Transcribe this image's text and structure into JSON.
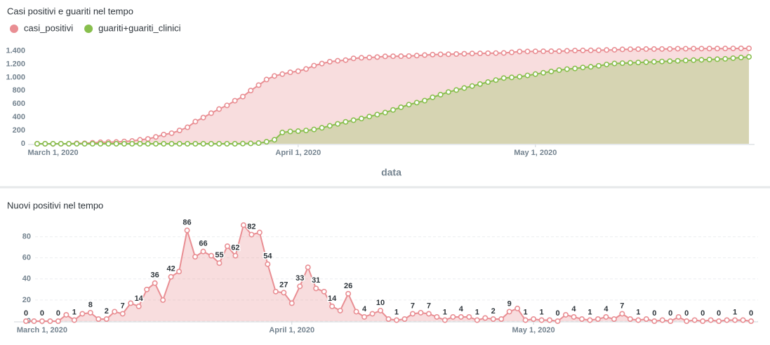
{
  "chart_data": [
    {
      "type": "area",
      "title": "Casi positivi e guariti nel tempo",
      "x_label": "data",
      "x": [
        "2020-02-28",
        "2020-02-29",
        "2020-03-01",
        "2020-03-02",
        "2020-03-03",
        "2020-03-04",
        "2020-03-05",
        "2020-03-06",
        "2020-03-07",
        "2020-03-08",
        "2020-03-09",
        "2020-03-10",
        "2020-03-11",
        "2020-03-12",
        "2020-03-13",
        "2020-03-14",
        "2020-03-15",
        "2020-03-16",
        "2020-03-17",
        "2020-03-18",
        "2020-03-19",
        "2020-03-20",
        "2020-03-21",
        "2020-03-22",
        "2020-03-23",
        "2020-03-24",
        "2020-03-25",
        "2020-03-26",
        "2020-03-27",
        "2020-03-28",
        "2020-03-29",
        "2020-03-30",
        "2020-03-31",
        "2020-04-01",
        "2020-04-02",
        "2020-04-03",
        "2020-04-04",
        "2020-04-05",
        "2020-04-06",
        "2020-04-07",
        "2020-04-08",
        "2020-04-09",
        "2020-04-10",
        "2020-04-11",
        "2020-04-12",
        "2020-04-13",
        "2020-04-14",
        "2020-04-15",
        "2020-04-16",
        "2020-04-17",
        "2020-04-18",
        "2020-04-19",
        "2020-04-20",
        "2020-04-21",
        "2020-04-22",
        "2020-04-23",
        "2020-04-24",
        "2020-04-25",
        "2020-04-26",
        "2020-04-27",
        "2020-04-28",
        "2020-04-29",
        "2020-04-30",
        "2020-05-01",
        "2020-05-02",
        "2020-05-03",
        "2020-05-04",
        "2020-05-05",
        "2020-05-06",
        "2020-05-07",
        "2020-05-08",
        "2020-05-09",
        "2020-05-10",
        "2020-05-11",
        "2020-05-12",
        "2020-05-13",
        "2020-05-14",
        "2020-05-15",
        "2020-05-16",
        "2020-05-17",
        "2020-05-18",
        "2020-05-19",
        "2020-05-20",
        "2020-05-21",
        "2020-05-22",
        "2020-05-23",
        "2020-05-24",
        "2020-05-25",
        "2020-05-26",
        "2020-05-27",
        "2020-05-28"
      ],
      "xlim": [
        "2020-02-28",
        "2020-05-28"
      ],
      "xticks": [
        {
          "value": "2020-03-01",
          "label": "March 1, 2020"
        },
        {
          "value": "2020-04-01",
          "label": "April 1, 2020"
        },
        {
          "value": "2020-05-01",
          "label": "May 1, 2020"
        }
      ],
      "ylim": [
        0,
        1480
      ],
      "yticks": [
        0,
        200,
        400,
        600,
        800,
        {
          "value": 1000,
          "label": "1.000"
        },
        {
          "value": 1200,
          "label": "1.200"
        },
        {
          "value": 1400,
          "label": "1.400"
        }
      ],
      "grid": false,
      "legend": "top-left",
      "series": [
        {
          "name": "casi_positivi",
          "color": "#e98e93",
          "values": [
            0,
            0,
            0,
            0,
            0,
            6,
            7,
            14,
            22,
            24,
            26,
            35,
            42,
            59,
            73,
            103,
            139,
            159,
            201,
            248,
            334,
            395,
            461,
            523,
            578,
            649,
            711,
            802,
            884,
            968,
            1022,
            1050,
            1077,
            1094,
            1127,
            1178,
            1209,
            1237,
            1251,
            1261,
            1287,
            1296,
            1300,
            1307,
            1317,
            1319,
            1320,
            1322,
            1329,
            1337,
            1344,
            1348,
            1349,
            1353,
            1357,
            1361,
            1362,
            1365,
            1367,
            1369,
            1378,
            1390,
            1391,
            1393,
            1394,
            1395,
            1395,
            1401,
            1405,
            1407,
            1408,
            1410,
            1414,
            1416,
            1423,
            1425,
            1426,
            1428,
            1428,
            1429,
            1429,
            1433,
            1433,
            1434,
            1434,
            1435,
            1435,
            1436,
            1437,
            1438,
            1438
          ]
        },
        {
          "name": "guariti+guariti_clinici",
          "color": "#88bf4d",
          "values": [
            0,
            0,
            0,
            0,
            0,
            0,
            0,
            0,
            0,
            0,
            0,
            0,
            0,
            0,
            0,
            0,
            0,
            0,
            0,
            0,
            0,
            0,
            0,
            0,
            0,
            0,
            2,
            5,
            10,
            30,
            60,
            170,
            185,
            190,
            200,
            215,
            240,
            270,
            300,
            330,
            355,
            380,
            410,
            440,
            470,
            510,
            550,
            590,
            620,
            650,
            700,
            740,
            780,
            810,
            840,
            870,
            900,
            930,
            960,
            990,
            1000,
            1010,
            1030,
            1050,
            1070,
            1090,
            1110,
            1125,
            1135,
            1150,
            1160,
            1175,
            1195,
            1210,
            1215,
            1220,
            1225,
            1230,
            1235,
            1240,
            1245,
            1250,
            1255,
            1260,
            1265,
            1270,
            1275,
            1280,
            1290,
            1300,
            1310
          ]
        }
      ]
    },
    {
      "type": "area",
      "title": "Nuovi positivi nel tempo",
      "x": [
        "2020-02-28",
        "2020-02-29",
        "2020-03-01",
        "2020-03-02",
        "2020-03-03",
        "2020-03-04",
        "2020-03-05",
        "2020-03-06",
        "2020-03-07",
        "2020-03-08",
        "2020-03-09",
        "2020-03-10",
        "2020-03-11",
        "2020-03-12",
        "2020-03-13",
        "2020-03-14",
        "2020-03-15",
        "2020-03-16",
        "2020-03-17",
        "2020-03-18",
        "2020-03-19",
        "2020-03-20",
        "2020-03-21",
        "2020-03-22",
        "2020-03-23",
        "2020-03-24",
        "2020-03-25",
        "2020-03-26",
        "2020-03-27",
        "2020-03-28",
        "2020-03-29",
        "2020-03-30",
        "2020-03-31",
        "2020-04-01",
        "2020-04-02",
        "2020-04-03",
        "2020-04-04",
        "2020-04-05",
        "2020-04-06",
        "2020-04-07",
        "2020-04-08",
        "2020-04-09",
        "2020-04-10",
        "2020-04-11",
        "2020-04-12",
        "2020-04-13",
        "2020-04-14",
        "2020-04-15",
        "2020-04-16",
        "2020-04-17",
        "2020-04-18",
        "2020-04-19",
        "2020-04-20",
        "2020-04-21",
        "2020-04-22",
        "2020-04-23",
        "2020-04-24",
        "2020-04-25",
        "2020-04-26",
        "2020-04-27",
        "2020-04-28",
        "2020-04-29",
        "2020-04-30",
        "2020-05-01",
        "2020-05-02",
        "2020-05-03",
        "2020-05-04",
        "2020-05-05",
        "2020-05-06",
        "2020-05-07",
        "2020-05-08",
        "2020-05-09",
        "2020-05-10",
        "2020-05-11",
        "2020-05-12",
        "2020-05-13",
        "2020-05-14",
        "2020-05-15",
        "2020-05-16",
        "2020-05-17",
        "2020-05-18",
        "2020-05-19",
        "2020-05-20",
        "2020-05-21",
        "2020-05-22",
        "2020-05-23",
        "2020-05-24",
        "2020-05-25",
        "2020-05-26",
        "2020-05-27",
        "2020-05-28"
      ],
      "xlim": [
        "2020-02-28",
        "2020-05-28"
      ],
      "xticks": [
        {
          "value": "2020-03-01",
          "label": "March 1, 2020"
        },
        {
          "value": "2020-04-01",
          "label": "April 1, 2020"
        },
        {
          "value": "2020-05-01",
          "label": "May 1, 2020"
        }
      ],
      "ylim": [
        0,
        95
      ],
      "yticks": [
        0,
        20,
        40,
        60,
        80
      ],
      "grid": true,
      "color": "#e98e93",
      "data_labels_every": 2,
      "values": [
        0,
        0,
        0,
        0,
        0,
        6,
        1,
        7,
        8,
        2,
        2,
        9,
        7,
        17,
        14,
        30,
        36,
        20,
        42,
        47,
        86,
        61,
        66,
        62,
        55,
        71,
        62,
        91,
        82,
        84,
        54,
        28,
        27,
        17,
        33,
        51,
        31,
        28,
        14,
        10,
        26,
        9,
        4,
        7,
        10,
        2,
        1,
        2,
        7,
        8,
        7,
        4,
        1,
        4,
        4,
        4,
        1,
        3,
        2,
        2,
        9,
        12,
        1,
        2,
        1,
        1,
        0,
        6,
        4,
        2,
        1,
        2,
        4,
        2,
        7,
        2,
        1,
        2,
        0,
        1,
        0,
        4,
        0,
        1,
        0,
        1,
        0,
        1,
        1,
        1,
        0
      ]
    }
  ]
}
